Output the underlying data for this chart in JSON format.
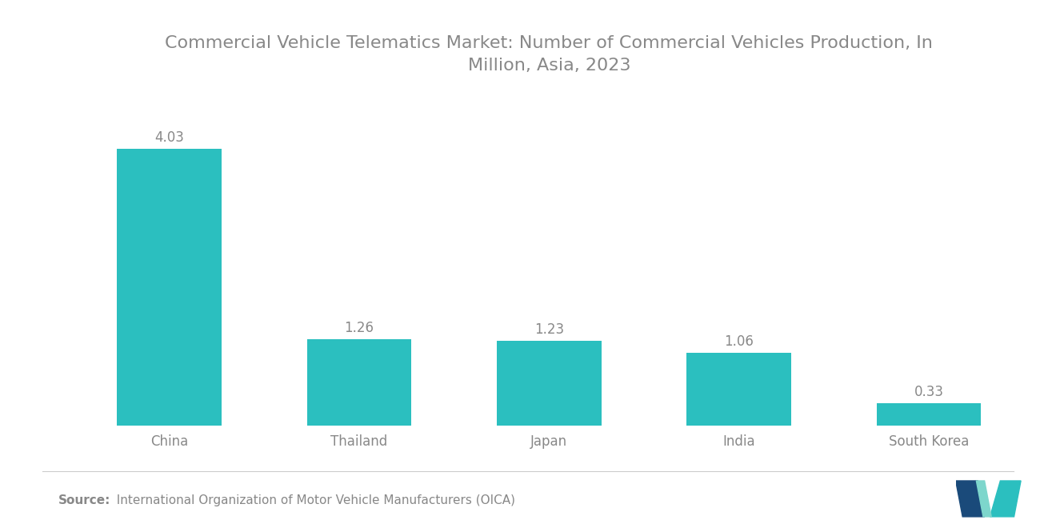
{
  "title": "Commercial Vehicle Telematics Market: Number of Commercial Vehicles Production, In\nMillion, Asia, 2023",
  "categories": [
    "China",
    "Thailand",
    "Japan",
    "India",
    "South Korea"
  ],
  "values": [
    4.03,
    1.26,
    1.23,
    1.06,
    0.33
  ],
  "bar_color": "#2BBFBF",
  "background_color": "#ffffff",
  "ylim": [
    0,
    4.8
  ],
  "source_bold": "Source:",
  "source_text": "  International Organization of Motor Vehicle Manufacturers (OICA)",
  "title_fontsize": 16,
  "label_fontsize": 12,
  "value_fontsize": 12,
  "source_fontsize": 11,
  "title_color": "#888888",
  "label_color": "#888888",
  "value_color": "#888888"
}
